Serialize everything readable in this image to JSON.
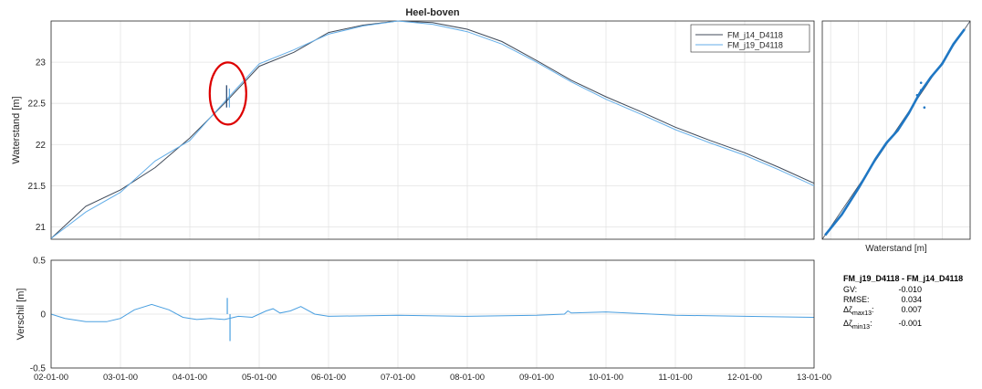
{
  "chart_data": [
    {
      "type": "line",
      "title": "Heel-boven",
      "ylabel": "Waterstand [m]",
      "xlim": [
        "02-01-00",
        "13-01-00"
      ],
      "ylim": [
        20.85,
        23.5
      ],
      "yticks": [
        21,
        21.5,
        22,
        22.5,
        23
      ],
      "xticks": [
        "02-01-00",
        "03-01-00",
        "04-01-00",
        "05-01-00",
        "06-01-00",
        "07-01-00",
        "08-01-00",
        "09-01-00",
        "10-01-00",
        "11-01-00",
        "12-01-00",
        "13-01-00"
      ],
      "grid": true,
      "legend_position": "top-right",
      "x": [
        2.0,
        2.5,
        3.0,
        3.5,
        4.0,
        4.5,
        5.0,
        5.5,
        6.0,
        6.5,
        7.0,
        7.5,
        8.0,
        8.5,
        9.0,
        9.5,
        10.0,
        10.5,
        11.0,
        11.5,
        12.0,
        12.5,
        13.0
      ],
      "series": [
        {
          "name": "FM_j14_D4118",
          "color": "#404a59",
          "values": [
            20.86,
            21.25,
            21.45,
            21.72,
            22.08,
            22.5,
            22.95,
            23.12,
            23.36,
            23.45,
            23.5,
            23.48,
            23.4,
            23.25,
            23.02,
            22.78,
            22.58,
            22.4,
            22.21,
            22.05,
            21.9,
            21.72,
            21.53
          ]
        },
        {
          "name": "FM_j19_D4118",
          "color": "#64aee8",
          "values": [
            20.86,
            21.18,
            21.42,
            21.8,
            22.05,
            22.52,
            22.98,
            23.15,
            23.34,
            23.44,
            23.5,
            23.46,
            23.37,
            23.22,
            23.0,
            22.76,
            22.55,
            22.37,
            22.18,
            22.02,
            21.87,
            21.69,
            21.5
          ]
        }
      ],
      "annotation": {
        "type": "circle",
        "color": "#dd0000",
        "x": 4.55,
        "y": 22.62
      }
    },
    {
      "type": "scatter",
      "xlabel": "Waterstand [m]",
      "xlim": [
        20.85,
        23.5
      ],
      "ylim": [
        20.85,
        23.5
      ],
      "grid": true,
      "x": [
        20.9,
        21.2,
        21.5,
        21.8,
        22.0,
        22.2,
        22.4,
        22.6,
        22.8,
        23.0,
        23.2,
        23.4
      ],
      "y": [
        20.9,
        21.15,
        21.47,
        21.82,
        22.02,
        22.17,
        22.38,
        22.63,
        22.82,
        22.98,
        23.22,
        23.4
      ],
      "outliers": [
        [
          22.55,
          22.6
        ],
        [
          22.62,
          22.75
        ],
        [
          22.68,
          22.45
        ],
        [
          22.62,
          22.66
        ]
      ],
      "color": "#1f77c4"
    },
    {
      "type": "line",
      "ylabel": "Verschil [m]",
      "ylim": [
        -0.5,
        0.5
      ],
      "yticks": [
        -0.5,
        0,
        0.5
      ],
      "xticks": [
        "02-01-00",
        "03-01-00",
        "04-01-00",
        "05-01-00",
        "06-01-00",
        "07-01-00",
        "08-01-00",
        "09-01-00",
        "10-01-00",
        "11-01-00",
        "12-01-00",
        "13-01-00"
      ],
      "grid": true,
      "x": [
        2.0,
        2.2,
        2.5,
        2.8,
        3.0,
        3.2,
        3.45,
        3.7,
        3.9,
        4.1,
        4.3,
        4.5,
        4.7,
        4.9,
        5.1,
        5.2,
        5.3,
        5.45,
        5.6,
        5.8,
        6.0,
        7.0,
        8.0,
        9.0,
        9.4,
        9.45,
        9.5,
        10.0,
        11.0,
        12.0,
        13.0
      ],
      "values": [
        0.0,
        -0.04,
        -0.07,
        -0.07,
        -0.04,
        0.04,
        0.09,
        0.04,
        -0.03,
        -0.05,
        -0.04,
        -0.05,
        -0.02,
        -0.03,
        0.03,
        0.05,
        0.01,
        0.03,
        0.07,
        0.0,
        -0.02,
        -0.01,
        -0.02,
        -0.01,
        0.0,
        0.03,
        0.01,
        0.02,
        -0.01,
        -0.02,
        -0.03
      ],
      "spikes": [
        {
          "x": 4.54,
          "max": 0.15,
          "min": -0.25
        }
      ],
      "color": "#4a9fe0"
    }
  ],
  "stats": {
    "title": "FM_j19_D4118 - FM_j14_D4118",
    "rows": [
      {
        "label": "GV:",
        "value": "-0.010"
      },
      {
        "label": "RMSE:",
        "value": "0.034"
      },
      {
        "label": "Δζ",
        "sub": "max13",
        "colon": ":",
        "value": "0.007"
      },
      {
        "label": "Δζ",
        "sub": "min13",
        "colon": ":",
        "value": "-0.001"
      }
    ]
  }
}
